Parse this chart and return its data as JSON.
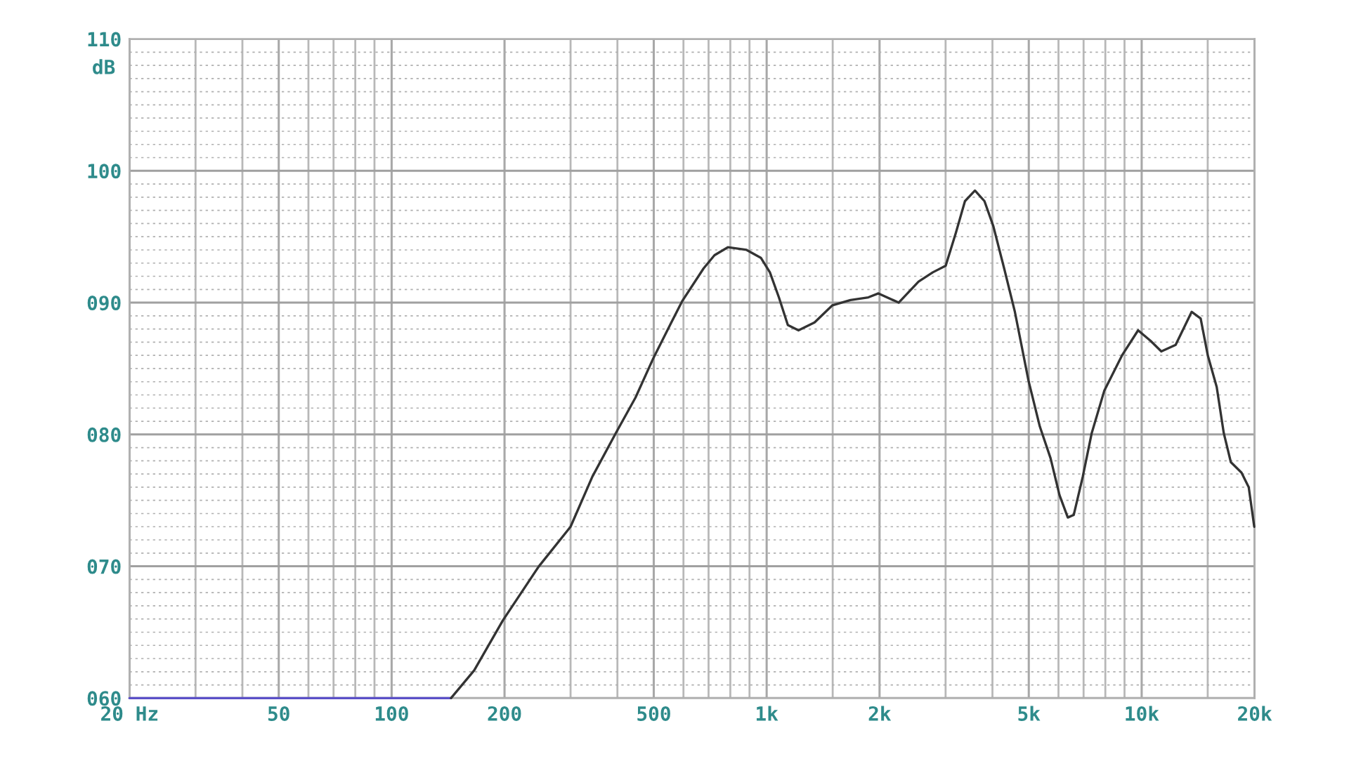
{
  "chart_data": {
    "type": "line",
    "ylabel": "dB",
    "log": "x",
    "grid": true,
    "xlim": [
      20,
      20000
    ],
    "ylim": [
      60,
      110
    ],
    "xticks": [
      {
        "value": 20,
        "label": "20 Hz"
      },
      {
        "value": 30,
        "label": null
      },
      {
        "value": 40,
        "label": null
      },
      50,
      {
        "value": 60,
        "label": null
      },
      {
        "value": 70,
        "label": null
      },
      {
        "value": 80,
        "label": null
      },
      {
        "value": 90,
        "label": null
      },
      100,
      200,
      {
        "value": 300,
        "label": null
      },
      {
        "value": 400,
        "label": null
      },
      500,
      {
        "value": 600,
        "label": null
      },
      {
        "value": 700,
        "label": null
      },
      {
        "value": 800,
        "label": null
      },
      {
        "value": 900,
        "label": null
      },
      {
        "value": 1000,
        "label": "1k"
      },
      {
        "value": 1500,
        "label": null
      },
      {
        "value": 2000,
        "label": "2k"
      },
      {
        "value": 3000,
        "label": null
      },
      {
        "value": 4000,
        "label": null
      },
      {
        "value": 5000,
        "label": "5k"
      },
      {
        "value": 6000,
        "label": null
      },
      {
        "value": 7000,
        "label": null
      },
      {
        "value": 8000,
        "label": null
      },
      {
        "value": 9000,
        "label": null
      },
      {
        "value": 10000,
        "label": "10k"
      },
      {
        "value": 15000,
        "label": null
      },
      {
        "value": 20000,
        "label": "20k"
      }
    ],
    "yticks": [
      {
        "value": 60,
        "label": "060"
      },
      {
        "value": 61,
        "label": null
      },
      {
        "value": 62,
        "label": null
      },
      {
        "value": 63,
        "label": null
      },
      {
        "value": 64,
        "label": null
      },
      {
        "value": 65,
        "label": null
      },
      {
        "value": 66,
        "label": null
      },
      {
        "value": 67,
        "label": null
      },
      {
        "value": 68,
        "label": null
      },
      {
        "value": 69,
        "label": null
      },
      {
        "value": 70,
        "label": "070"
      },
      {
        "value": 71,
        "label": null
      },
      {
        "value": 72,
        "label": null
      },
      {
        "value": 73,
        "label": null
      },
      {
        "value": 74,
        "label": null
      },
      {
        "value": 75,
        "label": null
      },
      {
        "value": 76,
        "label": null
      },
      {
        "value": 77,
        "label": null
      },
      {
        "value": 78,
        "label": null
      },
      {
        "value": 79,
        "label": null
      },
      {
        "value": 80,
        "label": "080"
      },
      {
        "value": 81,
        "label": null
      },
      {
        "value": 82,
        "label": null
      },
      {
        "value": 83,
        "label": null
      },
      {
        "value": 84,
        "label": null
      },
      {
        "value": 85,
        "label": null
      },
      {
        "value": 86,
        "label": null
      },
      {
        "value": 87,
        "label": null
      },
      {
        "value": 88,
        "label": null
      },
      {
        "value": 89,
        "label": null
      },
      {
        "value": 90,
        "label": "090"
      },
      {
        "value": 91,
        "label": null
      },
      {
        "value": 92,
        "label": null
      },
      {
        "value": 93,
        "label": null
      },
      {
        "value": 94,
        "label": null
      },
      {
        "value": 95,
        "label": null
      },
      {
        "value": 96,
        "label": null
      },
      {
        "value": 97,
        "label": null
      },
      {
        "value": 98,
        "label": null
      },
      {
        "value": 99,
        "label": null
      },
      100,
      {
        "value": 101,
        "label": null
      },
      {
        "value": 102,
        "label": null
      },
      {
        "value": 103,
        "label": null
      },
      {
        "value": 104,
        "label": null
      },
      {
        "value": 105,
        "label": null
      },
      {
        "value": 106,
        "label": null
      },
      {
        "value": 107,
        "label": null
      },
      {
        "value": 108,
        "label": null
      },
      {
        "value": 109,
        "label": null
      },
      110
    ],
    "series": [
      {
        "color": "#5b50c8",
        "x": [
          20,
          144
        ],
        "values": [
          60,
          60
        ]
      },
      {
        "color": "#333333",
        "x": [
          144,
          166,
          198,
          247,
          300,
          343,
          396,
          447,
          499,
          557,
          595,
          679,
          726,
          788,
          884,
          965,
          1020,
          1078,
          1139,
          1216,
          1342,
          1498,
          1673,
          1867,
          1986,
          2249,
          2541,
          2774,
          3002,
          3196,
          3379,
          3593,
          3809,
          4022,
          4298,
          4591,
          4990,
          5351,
          5715,
          6037,
          6354,
          6590,
          6966,
          7358,
          7945,
          8864,
          9783,
          10563,
          11282,
          12318,
          13590,
          14363,
          15007,
          15852,
          16555,
          17287,
          18460,
          19296,
          19960
        ],
        "values": [
          60,
          62.1,
          65.9,
          70.0,
          73.0,
          76.8,
          80.1,
          82.8,
          85.8,
          88.5,
          90.1,
          92.6,
          93.6,
          94.2,
          94.0,
          93.4,
          92.3,
          90.4,
          88.3,
          87.9,
          88.5,
          89.8,
          90.2,
          90.4,
          90.7,
          90.0,
          91.6,
          92.3,
          92.8,
          95.3,
          97.7,
          98.5,
          97.7,
          95.8,
          92.6,
          89.3,
          84.1,
          80.6,
          78.2,
          75.4,
          73.7,
          73.9,
          76.8,
          80.1,
          83.3,
          86.0,
          87.9,
          87.1,
          86.3,
          86.8,
          89.3,
          88.8,
          86.0,
          83.6,
          80.1,
          77.9,
          77.1,
          76.0,
          73.0
        ]
      }
    ]
  }
}
